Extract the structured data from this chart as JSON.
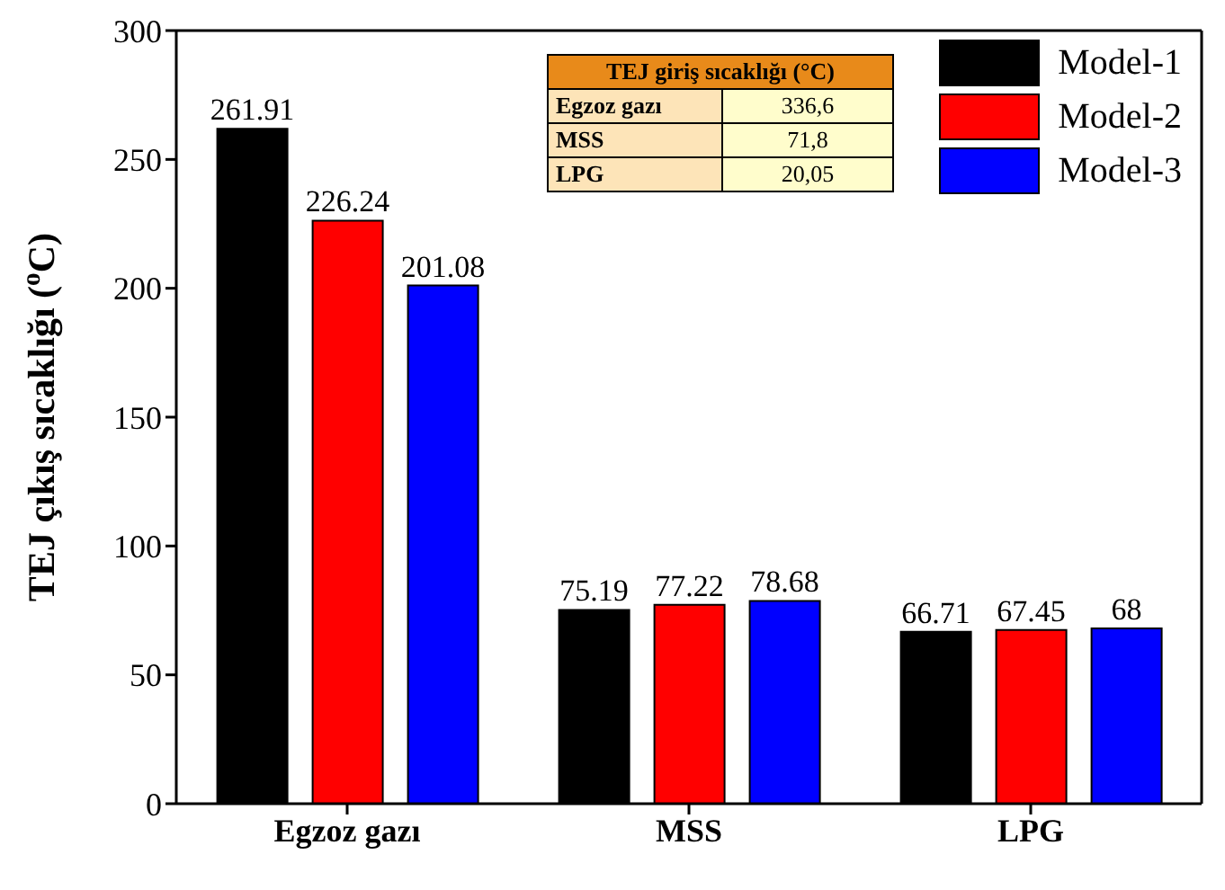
{
  "chart_data": {
    "type": "bar",
    "ylabel": "TEJ çıkış sıcaklığı ($^{o}$C)",
    "categories": [
      "Egzoz gazı",
      "MSS",
      "LPG"
    ],
    "series": [
      {
        "name": "Model-1",
        "color": "#000000",
        "values": [
          261.91,
          75.19,
          66.71
        ]
      },
      {
        "name": "Model-2",
        "color": "#ff0000",
        "values": [
          226.24,
          77.22,
          67.45
        ]
      },
      {
        "name": "Model-3",
        "color": "#0000ff",
        "values": [
          201.08,
          78.68,
          68
        ]
      }
    ],
    "ylim": [
      0,
      300
    ],
    "yticks": [
      0,
      50,
      100,
      150,
      200,
      250,
      300
    ],
    "grid": false,
    "legend": "top right",
    "data_labels": true,
    "annotations": [
      "TEJ giriş sıcaklığı (°C)",
      "Egzoz gazı",
      "336,6",
      "MSS",
      "71,8",
      "LPG",
      "20,05"
    ]
  }
}
